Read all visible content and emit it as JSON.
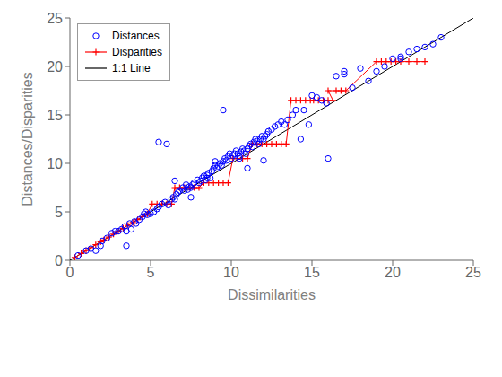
{
  "chart_data": {
    "type": "scatter",
    "xlabel": "Dissimilarities",
    "ylabel": "Distances/Disparities",
    "xlim": [
      0,
      25
    ],
    "ylim": [
      0,
      25
    ],
    "xticks": [
      0,
      5,
      10,
      15,
      20,
      25
    ],
    "yticks": [
      0,
      5,
      10,
      15,
      20,
      25
    ],
    "grid": false,
    "legend": "upper left",
    "series": [
      {
        "name": "Distances",
        "type": "scatter",
        "marker": "circle",
        "color": "#0000ff",
        "x": [
          0.5,
          1.0,
          1.3,
          1.6,
          1.9,
          2.0,
          2.3,
          2.6,
          2.8,
          3.0,
          3.2,
          3.4,
          3.5,
          3.7,
          3.8,
          4.0,
          4.1,
          4.3,
          4.5,
          4.6,
          4.8,
          5.0,
          5.2,
          5.4,
          5.5,
          5.7,
          5.9,
          6.1,
          6.3,
          6.4,
          6.5,
          6.6,
          6.7,
          6.8,
          7.0,
          7.1,
          7.2,
          7.3,
          7.4,
          7.5,
          7.6,
          7.7,
          7.9,
          8.0,
          8.1,
          8.2,
          8.3,
          8.4,
          8.5,
          8.6,
          8.7,
          8.8,
          8.9,
          9.0,
          9.1,
          9.2,
          9.3,
          9.4,
          9.5,
          9.6,
          9.7,
          9.8,
          9.9,
          10.0,
          10.1,
          10.2,
          10.3,
          10.4,
          10.5,
          10.6,
          10.7,
          10.8,
          10.9,
          11.0,
          11.1,
          11.2,
          11.3,
          11.4,
          11.5,
          11.6,
          11.7,
          11.8,
          11.9,
          12.0,
          12.1,
          12.2,
          12.3,
          12.5,
          12.7,
          12.9,
          13.1,
          13.3,
          13.5,
          14.0,
          14.5,
          15.0,
          15.3,
          15.6,
          15.9,
          16.5,
          17.0,
          17.5,
          18.0,
          19.0,
          19.5,
          20.0,
          20.5,
          21.0,
          21.5,
          22.0,
          22.5,
          3.5,
          4.7,
          6.0,
          7.5,
          9.0,
          10.5,
          12.0,
          14.3,
          16.0,
          18.5,
          20.5,
          23.0,
          5.5,
          8.5,
          11.0,
          13.8,
          6.5,
          9.5,
          14.8,
          17.0
        ],
        "values": [
          0.5,
          1.0,
          1.2,
          1.0,
          1.5,
          2.0,
          2.3,
          2.8,
          3.0,
          3.0,
          3.2,
          3.5,
          3.0,
          3.8,
          3.2,
          4.0,
          3.8,
          4.2,
          4.5,
          4.8,
          4.7,
          4.8,
          5.0,
          5.3,
          5.5,
          5.8,
          6.0,
          5.7,
          6.3,
          6.5,
          6.3,
          6.8,
          7.0,
          7.2,
          7.5,
          7.2,
          7.8,
          7.3,
          7.6,
          7.5,
          7.8,
          8.0,
          8.3,
          8.0,
          8.2,
          8.5,
          8.7,
          8.3,
          8.8,
          9.0,
          8.5,
          9.2,
          9.5,
          9.8,
          9.5,
          9.7,
          10.0,
          9.8,
          10.2,
          10.5,
          10.3,
          10.7,
          11.0,
          10.5,
          10.8,
          11.0,
          11.3,
          11.0,
          10.7,
          11.2,
          11.5,
          11.3,
          11.0,
          11.5,
          11.8,
          12.0,
          11.7,
          12.2,
          12.5,
          12.3,
          12.0,
          12.5,
          12.8,
          12.5,
          12.8,
          13.0,
          13.3,
          13.5,
          13.8,
          14.0,
          14.3,
          14.0,
          14.5,
          15.5,
          15.5,
          17.0,
          16.8,
          16.5,
          16.2,
          19.0,
          19.5,
          17.8,
          19.8,
          19.5,
          20.0,
          20.8,
          21.0,
          21.5,
          21.8,
          22.0,
          22.3,
          1.5,
          5.0,
          12.0,
          6.5,
          10.2,
          10.5,
          10.3,
          12.5,
          10.5,
          18.5,
          20.8,
          23.0,
          12.2,
          8.5,
          9.5,
          15.0,
          8.2,
          15.5,
          14.0,
          19.2
        ]
      },
      {
        "name": "Disparities",
        "type": "line",
        "marker": "plus",
        "color": "#ff0000",
        "x": [
          0.3,
          0.7,
          1.0,
          1.3,
          1.6,
          1.9,
          2.1,
          2.4,
          2.7,
          3.0,
          3.3,
          3.6,
          3.9,
          4.2,
          4.5,
          4.8,
          5.1,
          5.4,
          5.7,
          6.0,
          6.3,
          6.5,
          6.8,
          7.1,
          7.4,
          7.7,
          8.0,
          8.3,
          8.6,
          8.9,
          9.2,
          9.5,
          9.8,
          10.1,
          10.4,
          10.7,
          11.0,
          11.3,
          11.6,
          11.9,
          12.2,
          12.5,
          12.8,
          13.1,
          13.4,
          13.7,
          14.0,
          14.3,
          14.6,
          14.9,
          15.1,
          15.4,
          15.7,
          16.0,
          16.3,
          16.0,
          16.5,
          16.8,
          17.1,
          19.0,
          19.3,
          19.6,
          19.9,
          20.2,
          20.5,
          21.0,
          21.5,
          22.0
        ],
        "values": [
          0.3,
          0.7,
          1.0,
          1.3,
          1.6,
          1.9,
          2.1,
          2.4,
          2.7,
          3.0,
          3.3,
          3.6,
          3.9,
          4.2,
          4.5,
          4.8,
          5.8,
          5.8,
          5.8,
          5.8,
          5.8,
          7.5,
          7.5,
          7.5,
          7.5,
          7.5,
          7.5,
          8.0,
          8.0,
          8.0,
          8.0,
          8.0,
          8.0,
          10.5,
          10.5,
          10.5,
          10.5,
          12.0,
          12.0,
          12.0,
          12.0,
          12.0,
          12.0,
          12.0,
          12.0,
          16.5,
          16.5,
          16.5,
          16.5,
          16.5,
          16.5,
          16.5,
          16.5,
          16.5,
          16.5,
          17.5,
          17.5,
          17.5,
          17.5,
          20.5,
          20.5,
          20.5,
          20.5,
          20.5,
          20.5,
          20.5,
          20.5,
          20.5
        ]
      },
      {
        "name": "1:1 Line",
        "type": "line",
        "marker": "none",
        "color": "#000000",
        "x": [
          0,
          25
        ],
        "values": [
          0,
          25
        ]
      }
    ]
  }
}
